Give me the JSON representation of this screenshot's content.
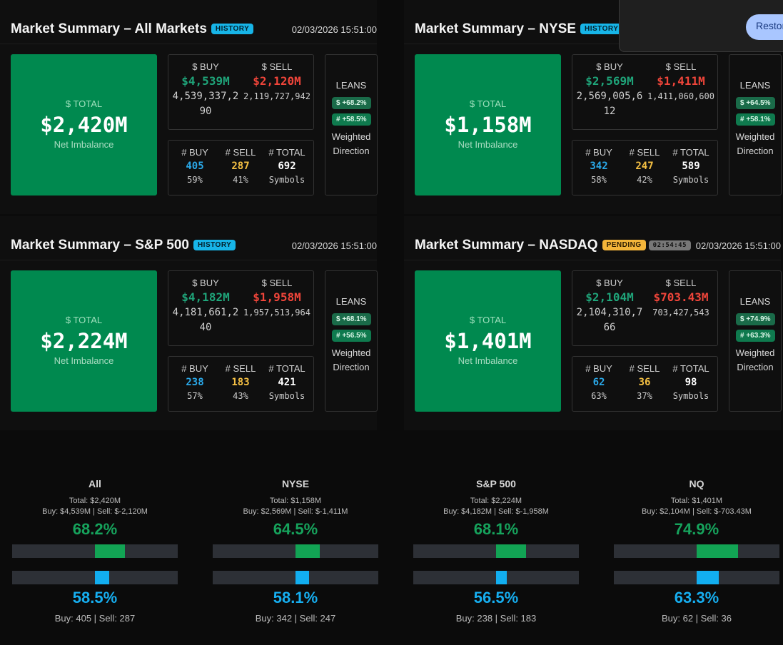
{
  "panels": [
    {
      "title": "Market Summary – All Markets",
      "badge": "HISTORY",
      "badge_type": "history",
      "timer": "",
      "timestamp": "02/03/2026 15:51:00",
      "total_label": "$ TOTAL",
      "total_value": "$2,420M",
      "total_sub": "Net Imbalance",
      "buy_label": "$ BUY",
      "sell_label": "$ SELL",
      "buy_short": "$4,539M",
      "sell_short": "$2,120M",
      "buy_raw": "4,539,337,290",
      "sell_raw": "2,119,727,942",
      "count_buy_label": "# BUY",
      "count_sell_label": "# SELL",
      "count_total_label": "# TOTAL",
      "count_buy": "405",
      "count_sell": "287",
      "count_total": "692",
      "count_buy_pct": "59%",
      "count_sell_pct": "41%",
      "count_total_sub": "Symbols",
      "leans_label": "LEANS",
      "lean_dollar": "$ +68.2%",
      "lean_count": "# +58.5%",
      "lean_desc": "Weighted Direction"
    },
    {
      "title": "Market Summary – NYSE",
      "badge": "HISTORY",
      "badge_type": "history",
      "timer": "",
      "timestamp": "",
      "total_label": "$ TOTAL",
      "total_value": "$1,158M",
      "total_sub": "Net Imbalance",
      "buy_label": "$ BUY",
      "sell_label": "$ SELL",
      "buy_short": "$2,569M",
      "sell_short": "$1,411M",
      "buy_raw": "2,569,005,612",
      "sell_raw": "1,411,060,600",
      "count_buy_label": "# BUY",
      "count_sell_label": "# SELL",
      "count_total_label": "# TOTAL",
      "count_buy": "342",
      "count_sell": "247",
      "count_total": "589",
      "count_buy_pct": "58%",
      "count_sell_pct": "42%",
      "count_total_sub": "Symbols",
      "leans_label": "LEANS",
      "lean_dollar": "$ +64.5%",
      "lean_count": "# +58.1%",
      "lean_desc": "Weighted Direction"
    },
    {
      "title": "Market Summary – S&P 500",
      "badge": "HISTORY",
      "badge_type": "history",
      "timer": "",
      "timestamp": "02/03/2026 15:51:00",
      "total_label": "$ TOTAL",
      "total_value": "$2,224M",
      "total_sub": "Net Imbalance",
      "buy_label": "$ BUY",
      "sell_label": "$ SELL",
      "buy_short": "$4,182M",
      "sell_short": "$1,958M",
      "buy_raw": "4,181,661,240",
      "sell_raw": "1,957,513,964",
      "count_buy_label": "# BUY",
      "count_sell_label": "# SELL",
      "count_total_label": "# TOTAL",
      "count_buy": "238",
      "count_sell": "183",
      "count_total": "421",
      "count_buy_pct": "57%",
      "count_sell_pct": "43%",
      "count_total_sub": "Symbols",
      "leans_label": "LEANS",
      "lean_dollar": "$ +68.1%",
      "lean_count": "# +56.5%",
      "lean_desc": "Weighted Direction"
    },
    {
      "title": "Market Summary – NASDAQ",
      "badge": "PENDING",
      "badge_type": "pending",
      "timer": "02:54:45",
      "timestamp": "02/03/2026 15:51:00",
      "total_label": "$ TOTAL",
      "total_value": "$1,401M",
      "total_sub": "Net Imbalance",
      "buy_label": "$ BUY",
      "sell_label": "$ SELL",
      "buy_short": "$2,104M",
      "sell_short": "$703.43M",
      "buy_raw": "2,104,310,766",
      "sell_raw": "703,427,543",
      "count_buy_label": "# BUY",
      "count_sell_label": "# SELL",
      "count_total_label": "# TOTAL",
      "count_buy": "62",
      "count_sell": "36",
      "count_total": "98",
      "count_buy_pct": "63%",
      "count_sell_pct": "37%",
      "count_total_sub": "Symbols",
      "leans_label": "LEANS",
      "lean_dollar": "$ +74.9%",
      "lean_count": "# +63.3%",
      "lean_desc": "Weighted Direction"
    }
  ],
  "overlay": {
    "restore_label": "Restore"
  },
  "summaries": [
    {
      "name": "All",
      "total": "Total: $2,420M",
      "buy_sell": "Buy: $4,539M | Sell: $-2,120M",
      "dollar_pct": "68.2%",
      "dollar_fraction": 0.682,
      "count_pct": "58.5%",
      "count_fraction": 0.585,
      "counts": "Buy: 405 | Sell: 287"
    },
    {
      "name": "NYSE",
      "total": "Total: $1,158M",
      "buy_sell": "Buy: $2,569M | Sell: $-1,411M",
      "dollar_pct": "64.5%",
      "dollar_fraction": 0.645,
      "count_pct": "58.1%",
      "count_fraction": 0.581,
      "counts": "Buy: 342 | Sell: 247"
    },
    {
      "name": "S&P 500",
      "total": "Total: $2,224M",
      "buy_sell": "Buy: $4,182M | Sell: $-1,958M",
      "dollar_pct": "68.1%",
      "dollar_fraction": 0.681,
      "count_pct": "56.5%",
      "count_fraction": 0.565,
      "counts": "Buy: 238 | Sell: 183"
    },
    {
      "name": "NQ",
      "total": "Total: $1,401M",
      "buy_sell": "Buy: $2,104M | Sell: $-703.43M",
      "dollar_pct": "74.9%",
      "dollar_fraction": 0.749,
      "count_pct": "63.3%",
      "count_fraction": 0.633,
      "counts": "Buy: 62 | Sell: 36"
    }
  ],
  "colors": {
    "total_bg": "#00894f",
    "buy_dollar": "#1fa57a",
    "sell_dollar": "#f0453a",
    "buy_count": "#2aa8e8",
    "sell_count": "#f5c043",
    "bar_green": "#12a454",
    "bar_blue": "#12aef0",
    "bar_track": "#2d3036"
  }
}
